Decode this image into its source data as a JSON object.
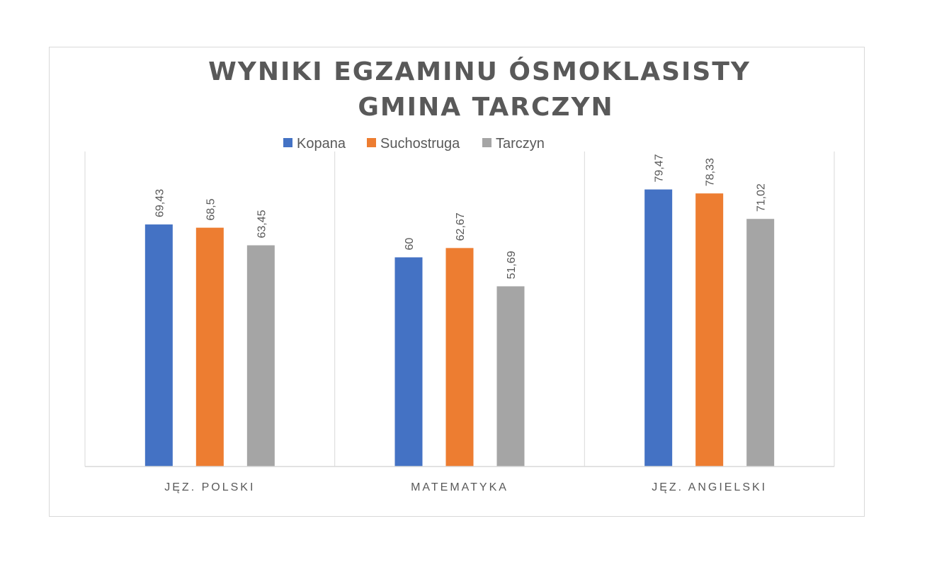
{
  "chart_data": {
    "type": "bar",
    "title": [
      "WYNIKI EGZAMINU ÓSMOKLASISTY",
      "GMINA TARCZYN"
    ],
    "categories": [
      "JĘZ. POLSKI",
      "MATEMATYKA",
      "JĘZ. ANGIELSKI"
    ],
    "series": [
      {
        "name": "Kopana",
        "color": "#4472c4",
        "values": [
          69.43,
          60,
          79.47
        ],
        "labels": [
          "69,43",
          "60",
          "79,47"
        ]
      },
      {
        "name": "Suchostruga",
        "color": "#ed7d31",
        "values": [
          68.5,
          62.67,
          78.33
        ],
        "labels": [
          "68,5",
          "62,67",
          "78,33"
        ]
      },
      {
        "name": "Tarczyn",
        "color": "#a5a5a5",
        "values": [
          63.45,
          51.69,
          71.02
        ],
        "labels": [
          "63,45",
          "51,69",
          "71,02"
        ]
      }
    ],
    "ylim": [
      0,
      80
    ],
    "legend_position": "top",
    "grid": "vertical category separators",
    "data_labels": "rotated vertical above bars"
  }
}
